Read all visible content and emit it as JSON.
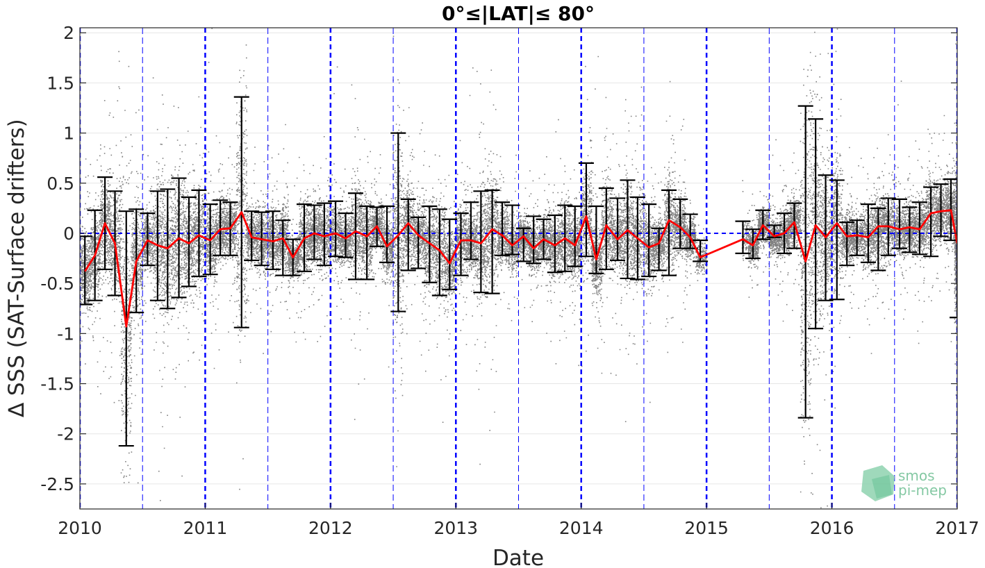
{
  "chart_data": {
    "type": "scatter",
    "title": "0°≤|LAT|≤ 80°",
    "xlabel": "Date",
    "ylabel": "∆ SSS (SAT-Surface drifters)",
    "xlim": [
      2010.0,
      2017.0
    ],
    "ylim": [
      -2.75,
      2.05
    ],
    "x_ticks": [
      2010,
      2011,
      2012,
      2013,
      2014,
      2015,
      2016,
      2017
    ],
    "x_tick_labels": [
      "2010",
      "2011",
      "2012",
      "2013",
      "2014",
      "2015",
      "2016",
      "2017"
    ],
    "y_ticks": [
      2,
      1.5,
      1,
      0.5,
      0,
      -0.5,
      -1,
      -1.5,
      -2,
      -2.5
    ],
    "y_tick_labels": [
      "2",
      "1.5",
      "1",
      "0.5",
      "0",
      "-0.5",
      "-1",
      "-1.5",
      "-2",
      "-2.5"
    ],
    "grid": true,
    "colors": {
      "scatter": "#808080",
      "mean_line": "#ff0000",
      "error_bars": "#000000",
      "year_lines": "#0000ff",
      "zero_line": "#0000ff",
      "grid": "#e6e6e6"
    },
    "year_lines": [
      2010,
      2011,
      2012,
      2013,
      2014,
      2015,
      2016,
      2017
    ],
    "half_year_lines": [
      2010.5,
      2011.5,
      2012.5,
      2013.5,
      2014.5,
      2015.5,
      2016.5
    ],
    "zero_line": 0,
    "series": [
      {
        "type": "errorbar",
        "x": [
          2010.04,
          2010.12,
          2010.2,
          2010.28,
          2010.37,
          2010.45,
          2010.54,
          2010.62,
          2010.7,
          2010.79,
          2010.87,
          2010.95,
          2011.04,
          2011.12,
          2011.2,
          2011.29,
          2011.37,
          2011.45,
          2011.54,
          2011.62,
          2011.7,
          2011.79,
          2011.87,
          2011.95,
          2012.04,
          2012.12,
          2012.2,
          2012.29,
          2012.37,
          2012.45,
          2012.54,
          2012.62,
          2012.7,
          2012.79,
          2012.87,
          2012.95,
          2013.04,
          2013.12,
          2013.2,
          2013.29,
          2013.37,
          2013.45,
          2013.54,
          2013.62,
          2013.7,
          2013.79,
          2013.87,
          2013.95,
          2014.04,
          2014.12,
          2014.2,
          2014.29,
          2014.37,
          2014.45,
          2014.54,
          2014.62,
          2014.7,
          2014.79,
          2014.87,
          2014.95,
          2015.29,
          2015.37,
          2015.45,
          2015.54,
          2015.62,
          2015.7,
          2015.79,
          2015.87,
          2015.95,
          2016.04,
          2016.12,
          2016.2,
          2016.29,
          2016.37,
          2016.45,
          2016.54,
          2016.62,
          2016.7,
          2016.79,
          2016.87,
          2016.95,
          2017.0
        ],
        "mean": [
          -0.38,
          -0.22,
          0.1,
          -0.1,
          -0.93,
          -0.28,
          -0.07,
          -0.12,
          -0.15,
          -0.05,
          -0.1,
          -0.02,
          -0.07,
          0.04,
          0.05,
          0.21,
          -0.04,
          -0.06,
          -0.08,
          -0.05,
          -0.24,
          -0.05,
          0.0,
          -0.03,
          0.0,
          -0.05,
          0.02,
          -0.03,
          0.07,
          -0.13,
          -0.02,
          0.1,
          -0.02,
          -0.1,
          -0.17,
          -0.3,
          -0.07,
          -0.07,
          -0.1,
          0.04,
          -0.02,
          -0.12,
          -0.03,
          -0.15,
          -0.06,
          -0.12,
          -0.05,
          -0.12,
          0.17,
          -0.26,
          0.08,
          -0.06,
          0.03,
          -0.05,
          -0.14,
          -0.1,
          0.13,
          0.06,
          -0.04,
          -0.24,
          -0.06,
          -0.12,
          0.08,
          -0.03,
          0.0,
          0.11,
          -0.28,
          0.08,
          -0.04,
          0.1,
          -0.03,
          -0.02,
          -0.04,
          0.07,
          0.07,
          0.04,
          0.06,
          0.04,
          0.2,
          0.22,
          0.23,
          -0.1
        ],
        "upper": [
          -0.03,
          0.23,
          0.56,
          0.42,
          0.22,
          0.24,
          0.2,
          0.42,
          0.44,
          0.55,
          0.36,
          0.43,
          0.29,
          0.33,
          0.31,
          1.36,
          0.22,
          0.21,
          0.22,
          0.13,
          -0.06,
          0.29,
          0.28,
          0.3,
          0.32,
          0.2,
          0.4,
          0.27,
          0.26,
          0.27,
          1.0,
          0.34,
          0.16,
          0.27,
          0.24,
          0.14,
          0.2,
          0.31,
          0.42,
          0.43,
          0.31,
          0.28,
          0.05,
          0.17,
          0.14,
          0.18,
          0.28,
          0.27,
          0.7,
          0.27,
          0.45,
          0.35,
          0.53,
          0.36,
          0.29,
          0.05,
          0.43,
          0.34,
          0.19,
          -0.07,
          0.12,
          0.04,
          0.23,
          0.08,
          0.2,
          0.3,
          1.27,
          1.14,
          0.58,
          0.53,
          0.11,
          0.13,
          0.29,
          0.25,
          0.35,
          0.34,
          0.26,
          0.31,
          0.46,
          0.49,
          0.54,
          0.54
        ],
        "lower": [
          -0.71,
          -0.67,
          -0.36,
          -0.62,
          -2.12,
          -0.79,
          -0.32,
          -0.67,
          -0.75,
          -0.64,
          -0.53,
          -0.43,
          -0.41,
          -0.22,
          -0.22,
          -0.94,
          -0.27,
          -0.32,
          -0.36,
          -0.42,
          -0.42,
          -0.38,
          -0.26,
          -0.32,
          -0.23,
          -0.24,
          -0.46,
          -0.46,
          -0.13,
          -0.29,
          -0.78,
          -0.37,
          -0.35,
          -0.49,
          -0.62,
          -0.56,
          -0.42,
          -0.26,
          -0.59,
          -0.6,
          -0.22,
          -0.21,
          -0.28,
          -0.3,
          -0.26,
          -0.39,
          -0.38,
          -0.33,
          -0.23,
          -0.4,
          -0.36,
          -0.27,
          -0.45,
          -0.46,
          -0.43,
          -0.37,
          -0.42,
          -0.15,
          -0.15,
          -0.28,
          -0.2,
          -0.25,
          -0.06,
          -0.04,
          -0.2,
          -0.15,
          -1.84,
          -0.95,
          -0.67,
          -0.66,
          -0.32,
          -0.22,
          -0.29,
          -0.37,
          -0.22,
          -0.15,
          -0.19,
          -0.21,
          -0.23,
          -0.03,
          -0.07,
          -0.84
        ]
      },
      {
        "type": "line",
        "x": [
          2010.04,
          2010.12,
          2010.2,
          2010.28,
          2010.37,
          2010.45,
          2010.54,
          2010.62,
          2010.7,
          2010.79,
          2010.87,
          2010.95,
          2011.04,
          2011.12,
          2011.2,
          2011.29,
          2011.37,
          2011.45,
          2011.54,
          2011.62,
          2011.7,
          2011.79,
          2011.87,
          2011.95,
          2012.04,
          2012.12,
          2012.2,
          2012.29,
          2012.37,
          2012.45,
          2012.54,
          2012.62,
          2012.7,
          2012.79,
          2012.87,
          2012.95,
          2013.04,
          2013.12,
          2013.2,
          2013.29,
          2013.37,
          2013.45,
          2013.54,
          2013.62,
          2013.7,
          2013.79,
          2013.87,
          2013.95,
          2014.04,
          2014.12,
          2014.2,
          2014.29,
          2014.37,
          2014.45,
          2014.54,
          2014.62,
          2014.7,
          2014.79,
          2014.87,
          2014.95,
          2015.29,
          2015.37,
          2015.45,
          2015.54,
          2015.62,
          2015.7,
          2015.79,
          2015.87,
          2015.95,
          2016.04,
          2016.12,
          2016.2,
          2016.29,
          2016.37,
          2016.45,
          2016.54,
          2016.62,
          2016.7,
          2016.79,
          2016.87,
          2016.95,
          2017.0
        ],
        "y": [
          -0.38,
          -0.22,
          0.1,
          -0.1,
          -0.93,
          -0.28,
          -0.07,
          -0.12,
          -0.15,
          -0.05,
          -0.1,
          -0.02,
          -0.07,
          0.04,
          0.05,
          0.21,
          -0.04,
          -0.06,
          -0.08,
          -0.05,
          -0.24,
          -0.05,
          0.0,
          -0.03,
          0.0,
          -0.05,
          0.02,
          -0.03,
          0.07,
          -0.13,
          -0.02,
          0.1,
          -0.02,
          -0.1,
          -0.17,
          -0.3,
          -0.07,
          -0.07,
          -0.1,
          0.04,
          -0.02,
          -0.12,
          -0.03,
          -0.15,
          -0.06,
          -0.12,
          -0.05,
          -0.12,
          0.17,
          -0.26,
          0.08,
          -0.06,
          0.03,
          -0.05,
          -0.14,
          -0.1,
          0.13,
          0.06,
          -0.04,
          -0.24,
          -0.06,
          -0.12,
          0.08,
          -0.03,
          0.0,
          0.11,
          -0.28,
          0.08,
          -0.04,
          0.1,
          -0.03,
          -0.02,
          -0.04,
          0.07,
          0.07,
          0.04,
          0.06,
          0.04,
          0.2,
          0.22,
          0.23,
          -0.1
        ]
      }
    ],
    "scatter_density": {
      "gap": [
        2015.0,
        2015.28
      ]
    }
  },
  "logo": {
    "line1": "smos",
    "line2": "pi-mep"
  }
}
